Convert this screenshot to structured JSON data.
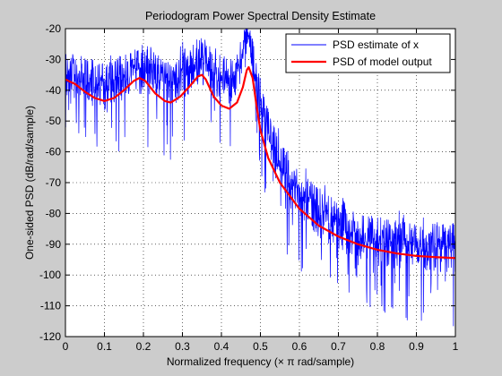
{
  "chart_data": {
    "type": "line",
    "title": "Periodogram Power Spectral Density Estimate",
    "xlabel": "Normalized frequency (× π rad/sample)",
    "ylabel": "One-sided PSD (dB/rad/sample)",
    "xlim": [
      0,
      1
    ],
    "ylim": [
      -120,
      -20
    ],
    "x_ticks": [
      0,
      0.1,
      0.2,
      0.3,
      0.4,
      0.5,
      0.6,
      0.7,
      0.8,
      0.9,
      1
    ],
    "x_tick_labels": [
      "0",
      "0.1",
      "0.2",
      "0.3",
      "0.4",
      "0.5",
      "0.6",
      "0.7",
      "0.8",
      "0.9",
      "1"
    ],
    "y_ticks": [
      -120,
      -110,
      -100,
      -90,
      -80,
      -70,
      -60,
      -50,
      -40,
      -30,
      -20
    ],
    "y_tick_labels": [
      "-120",
      "-110",
      "-100",
      "-90",
      "-80",
      "-70",
      "-60",
      "-50",
      "-40",
      "-30",
      "-20"
    ],
    "grid": true,
    "grid_style": "dotted",
    "legend_position": "top-right",
    "series": [
      {
        "name": "PSD estimate of x",
        "color": "#0000ff",
        "style": "noisy",
        "noise_peak_dB": 7,
        "noise_trough_dB": 28,
        "x": [
          0,
          0.05,
          0.1,
          0.15,
          0.19,
          0.23,
          0.27,
          0.31,
          0.35,
          0.38,
          0.42,
          0.45,
          0.468,
          0.49,
          0.52,
          0.55,
          0.6,
          0.65,
          0.7,
          0.75,
          0.8,
          0.85,
          0.9,
          0.95,
          1.0
        ],
        "values": [
          -33,
          -35,
          -37,
          -34,
          -30,
          -33,
          -36,
          -32,
          -28,
          -33,
          -35,
          -30,
          -20,
          -37,
          -52,
          -63,
          -71,
          -78,
          -82,
          -85,
          -87,
          -88,
          -89,
          -89,
          -89
        ]
      },
      {
        "name": "PSD of model output",
        "color": "#ff0000",
        "style": "smooth",
        "x": [
          0,
          0.025,
          0.05,
          0.075,
          0.1,
          0.125,
          0.15,
          0.175,
          0.19,
          0.205,
          0.23,
          0.255,
          0.27,
          0.295,
          0.32,
          0.34,
          0.35,
          0.36,
          0.38,
          0.4,
          0.42,
          0.44,
          0.455,
          0.465,
          0.47,
          0.48,
          0.49,
          0.5,
          0.52,
          0.55,
          0.6,
          0.65,
          0.7,
          0.75,
          0.8,
          0.85,
          0.9,
          0.95,
          1.0
        ],
        "values": [
          -36.5,
          -38,
          -40.5,
          -42.5,
          -43.5,
          -42.5,
          -40,
          -37,
          -36,
          -37,
          -41,
          -43.5,
          -44,
          -42,
          -38.5,
          -35.5,
          -35,
          -36.5,
          -42,
          -45,
          -46,
          -44,
          -39,
          -33.5,
          -32.5,
          -36,
          -45,
          -53,
          -62,
          -70,
          -78.5,
          -84,
          -87.5,
          -90,
          -91.8,
          -93,
          -93.8,
          -94.2,
          -94.5
        ]
      }
    ]
  }
}
